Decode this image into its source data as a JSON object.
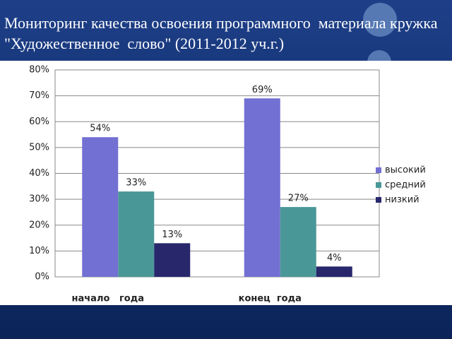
{
  "chart_data": {
    "type": "bar",
    "title": "Мониторинг качества освоения программного  материала кружка \"Художественное  слово\" (2011-2012 уч.г.)",
    "categories": [
      "начало   года",
      "конец  года"
    ],
    "series": [
      {
        "name": "высокий",
        "color": "#7270d2",
        "values": [
          54,
          69
        ],
        "value_labels": [
          "54%",
          "69%"
        ]
      },
      {
        "name": "средний",
        "color": "#4a9797",
        "values": [
          33,
          27
        ],
        "value_labels": [
          "33%",
          "27%"
        ]
      },
      {
        "name": "низкий",
        "color": "#28276c",
        "values": [
          13,
          4
        ],
        "value_labels": [
          "13%",
          "4%"
        ]
      }
    ],
    "ylim": [
      0,
      80
    ],
    "yticks": [
      {
        "value": 0,
        "label": "0%"
      },
      {
        "value": 10,
        "label": "10%"
      },
      {
        "value": 20,
        "label": "20%"
      },
      {
        "value": 30,
        "label": "30%"
      },
      {
        "value": 40,
        "label": "40%"
      },
      {
        "value": 50,
        "label": "50%"
      },
      {
        "value": 60,
        "label": "60%"
      },
      {
        "value": 70,
        "label": "70%"
      },
      {
        "value": 80,
        "label": "80%"
      }
    ],
    "grid": true,
    "legend": "right"
  }
}
